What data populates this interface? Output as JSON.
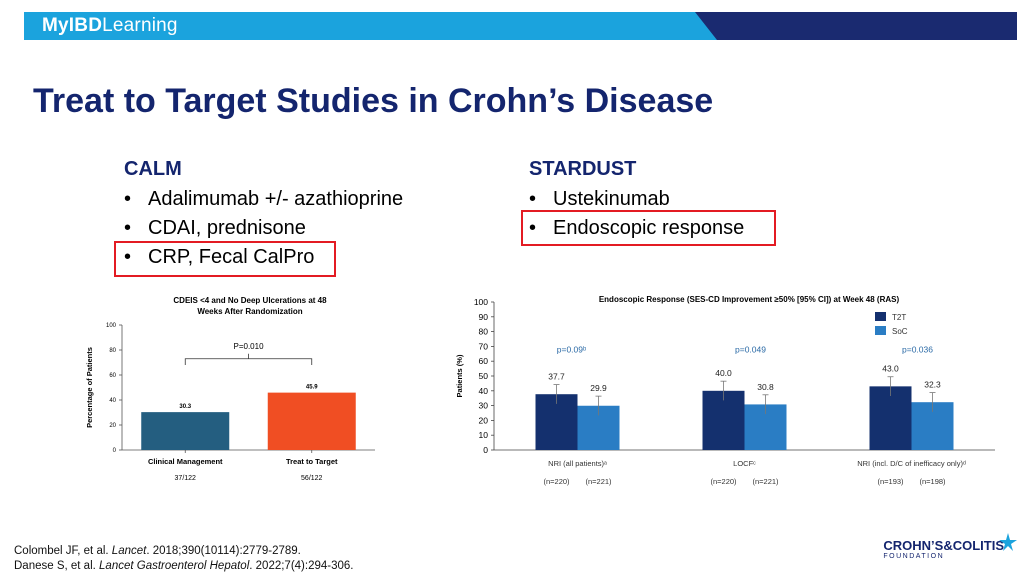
{
  "header": {
    "logo_bold": "MyIBD",
    "logo_light": "Learning",
    "colors": {
      "bar": "#1ba3dd",
      "dark": "#1a2a70"
    }
  },
  "title": "Treat to Target Studies in Crohn’s Disease",
  "calm": {
    "heading": "CALM",
    "items": [
      "Adalimumab +/- azathioprine",
      "CDAI, prednisone",
      "CRP, Fecal CalPro"
    ]
  },
  "stardust": {
    "heading": "STARDUST",
    "items": [
      "Ustekinumab",
      "Endoscopic response"
    ]
  },
  "bullet_symbol": "•",
  "highlight_color": "#e31b23",
  "chart_data": [
    {
      "type": "bar",
      "title": "CDEIS <4 and No Deep Ulcerations at 48 Weeks After Randomization",
      "ylabel": "Percentage of Patients",
      "ylim": [
        0,
        100
      ],
      "yticks": [
        "0",
        "20",
        "40",
        "60",
        "80",
        "100"
      ],
      "categories": [
        "Clinical Management",
        "Treat to Target"
      ],
      "values": [
        30.3,
        45.9
      ],
      "value_labels": [
        "30.3",
        "45.9"
      ],
      "counts": [
        "37/122",
        "56/122"
      ],
      "colors": [
        "#245e80",
        "#f04e23"
      ],
      "p_value": "P=0.010"
    },
    {
      "type": "bar",
      "title": "Endoscopic Response (SES-CD Improvement ≥50% [95% CI]) at Week 48 (RAS)",
      "ylabel": "Patients (%)",
      "ylim": [
        0,
        100
      ],
      "yticks": [
        "0",
        "10",
        "20",
        "30",
        "40",
        "50",
        "60",
        "70",
        "80",
        "90",
        "100"
      ],
      "categories": [
        "NRI (all patients)ᵃ",
        "LOCFᶜ",
        "NRI (incl. D/C of inefficacy only)ᵈ"
      ],
      "series": [
        {
          "name": "T2T",
          "values": [
            37.7,
            40.0,
            43.0
          ],
          "labels": [
            "37.7",
            "40.0",
            "43.0"
          ],
          "color": "#14306e"
        },
        {
          "name": "SoC",
          "values": [
            29.9,
            30.8,
            32.3
          ],
          "labels": [
            "29.9",
            "30.8",
            "32.3"
          ],
          "color": "#2a7dc4"
        }
      ],
      "n_t2t": [
        "(n=220)",
        "(n=220)",
        "(n=193)"
      ],
      "n_soc": [
        "(n=221)",
        "(n=221)",
        "(n=198)"
      ],
      "p_values": [
        "p=0.09ᵇ",
        "p=0.049",
        "p=0.036"
      ],
      "legend": "top-right"
    }
  ],
  "references": [
    {
      "pre": "Colombel JF, et al. ",
      "journal": "Lancet",
      "post": ". 2018;390(10114):2779-2789."
    },
    {
      "pre": "Danese S, et al. ",
      "journal": "Lancet Gastroenterol Hepatol",
      "post": ". 2022;7(4):294-306."
    }
  ],
  "footer_logo": {
    "text": "CROHN’S&COLITIS",
    "sub": "FOUNDATION"
  }
}
